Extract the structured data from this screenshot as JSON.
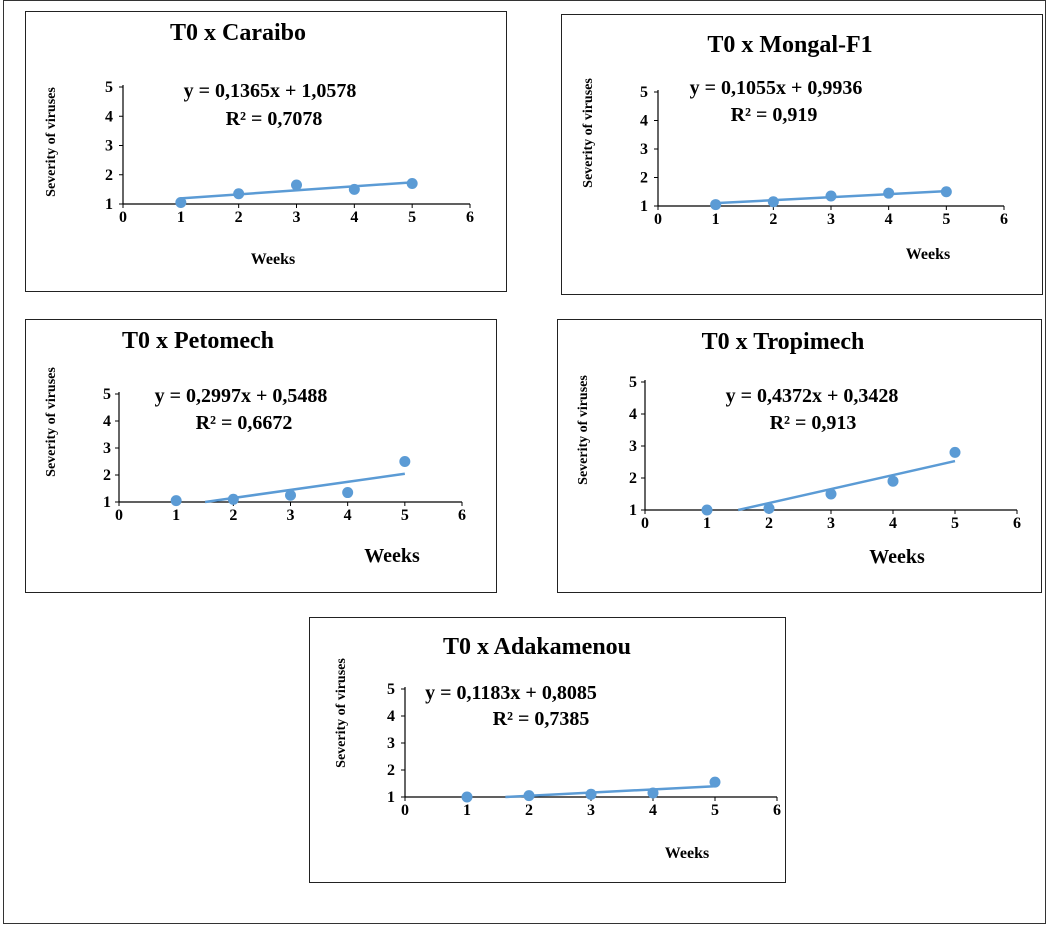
{
  "colors": {
    "series": "#5b9bd5",
    "axis": "#000000",
    "border": "#222222"
  },
  "chart_data": [
    {
      "type": "scatter",
      "title": "T0 x Caraibo",
      "xlabel": "Weeks",
      "ylabel": "Severity of viruses",
      "xlim": [
        0,
        6
      ],
      "ylim": [
        1,
        5
      ],
      "x_ticks": [
        "0",
        "1",
        "2",
        "3",
        "4",
        "5",
        "6"
      ],
      "y_ticks": [
        "1",
        "2",
        "3",
        "4",
        "5"
      ],
      "grid": false,
      "series": [
        {
          "x": [
            1,
            2,
            3,
            4,
            5
          ],
          "y": [
            1.05,
            1.35,
            1.65,
            1.5,
            1.7
          ]
        }
      ],
      "trendline": {
        "slope": 0.1365,
        "intercept": 1.0578,
        "x_range": [
          1,
          5
        ]
      },
      "equation": "y = 0,1365x + 1,0578",
      "r2": "R² = 0,7078"
    },
    {
      "type": "scatter",
      "title": "T0 x Mongal-F1",
      "xlabel": "Weeks",
      "ylabel": "Severity of viruses",
      "xlim": [
        0,
        6
      ],
      "ylim": [
        1,
        5
      ],
      "x_ticks": [
        "0",
        "1",
        "2",
        "3",
        "4",
        "5",
        "6"
      ],
      "y_ticks": [
        "1",
        "2",
        "3",
        "4",
        "5"
      ],
      "grid": false,
      "series": [
        {
          "x": [
            1,
            2,
            3,
            4,
            5
          ],
          "y": [
            1.05,
            1.15,
            1.35,
            1.45,
            1.5
          ]
        }
      ],
      "trendline": {
        "slope": 0.1055,
        "intercept": 0.9936,
        "x_range": [
          1,
          5
        ]
      },
      "equation": "y = 0,1055x + 0,9936",
      "r2": "R² = 0,919"
    },
    {
      "type": "scatter",
      "title": "T0 x Petomech",
      "xlabel": "Weeks",
      "ylabel": "Severity of viruses",
      "xlim": [
        0,
        6
      ],
      "ylim": [
        1,
        5
      ],
      "x_ticks": [
        "0",
        "1",
        "2",
        "3",
        "4",
        "5",
        "6"
      ],
      "y_ticks": [
        "1",
        "2",
        "3",
        "4",
        "5"
      ],
      "grid": false,
      "series": [
        {
          "x": [
            1,
            2,
            3,
            4,
            5
          ],
          "y": [
            1.05,
            1.1,
            1.25,
            1.35,
            2.5
          ]
        }
      ],
      "trendline": {
        "slope": 0.2997,
        "intercept": 0.5488,
        "x_range": [
          1,
          5
        ]
      },
      "equation": "y = 0,2997x + 0,5488",
      "r2": "R² = 0,6672"
    },
    {
      "type": "scatter",
      "title": "T0 x Tropimech",
      "xlabel": "Weeks",
      "ylabel": "Severity of viruses",
      "xlim": [
        0,
        6
      ],
      "ylim": [
        1,
        5
      ],
      "x_ticks": [
        "0",
        "1",
        "2",
        "3",
        "4",
        "5",
        "6"
      ],
      "y_ticks": [
        "1",
        "2",
        "3",
        "4",
        "5"
      ],
      "grid": false,
      "series": [
        {
          "x": [
            1,
            2,
            3,
            4,
            5
          ],
          "y": [
            1.0,
            1.05,
            1.5,
            1.9,
            2.8
          ]
        }
      ],
      "trendline": {
        "slope": 0.4372,
        "intercept": 0.3428,
        "x_range": [
          1,
          5
        ]
      },
      "equation": "y = 0,4372x + 0,3428",
      "r2": "R² = 0,913"
    },
    {
      "type": "scatter",
      "title": "T0 x Adakamenou",
      "xlabel": "Weeks",
      "ylabel": "Severity of viruses",
      "xlim": [
        0,
        6
      ],
      "ylim": [
        1,
        5
      ],
      "x_ticks": [
        "0",
        "1",
        "2",
        "3",
        "4",
        "5",
        "6"
      ],
      "y_ticks": [
        "1",
        "2",
        "3",
        "4",
        "5"
      ],
      "grid": false,
      "series": [
        {
          "x": [
            1,
            2,
            3,
            4,
            5
          ],
          "y": [
            1.0,
            1.05,
            1.1,
            1.15,
            1.55
          ]
        }
      ],
      "trendline": {
        "slope": 0.1183,
        "intercept": 0.8085,
        "x_range": [
          1,
          5
        ]
      },
      "equation": "y = 0,1183x + 0,8085",
      "r2": "R² = 0,7385"
    }
  ]
}
